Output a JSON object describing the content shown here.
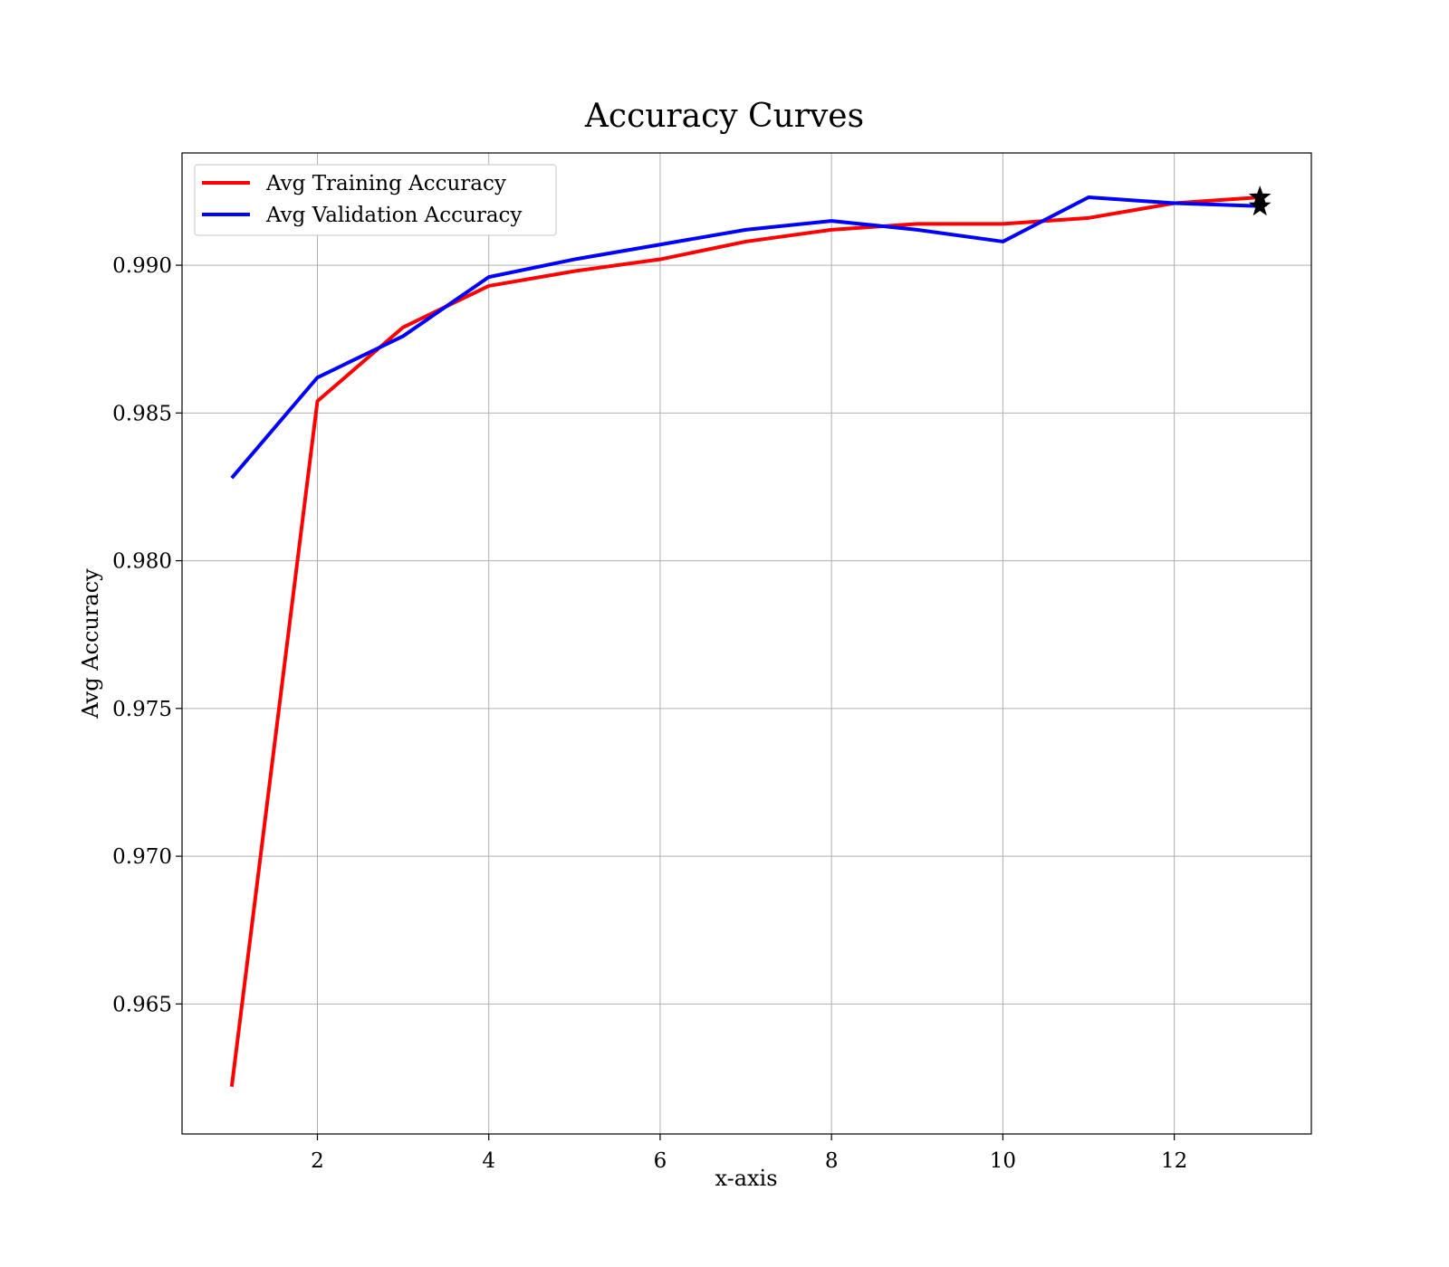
{
  "chart_data": {
    "type": "line",
    "title": "Accuracy Curves",
    "xlabel": "x-axis",
    "ylabel": "Avg Accuracy",
    "x": [
      1,
      2,
      3,
      4,
      5,
      6,
      7,
      8,
      9,
      10,
      11,
      12,
      13
    ],
    "xlim": [
      0.42,
      13.6
    ],
    "ylim": [
      0.9606,
      0.9938
    ],
    "xticks": [
      2,
      4,
      6,
      8,
      10,
      12
    ],
    "xtick_labels": [
      "2",
      "4",
      "6",
      "8",
      "10",
      "12"
    ],
    "yticks": [
      0.965,
      0.97,
      0.975,
      0.98,
      0.985,
      0.99
    ],
    "ytick_labels": [
      "0.965",
      "0.970",
      "0.975",
      "0.980",
      "0.985",
      "0.990"
    ],
    "grid": true,
    "legend_position": "top-left",
    "series": [
      {
        "name": "Avg Training Accuracy",
        "color": "#ff0000",
        "values": [
          0.9622,
          0.9854,
          0.9879,
          0.9893,
          0.9898,
          0.9902,
          0.9908,
          0.9912,
          0.9914,
          0.9914,
          0.9916,
          0.9921,
          0.9923
        ],
        "end_marker": "star"
      },
      {
        "name": "Avg Validation Accuracy",
        "color": "#0000ff",
        "values": [
          0.9828,
          0.9862,
          0.9876,
          0.9896,
          0.9902,
          0.9907,
          0.9912,
          0.9915,
          0.9912,
          0.9908,
          0.9923,
          0.9921,
          0.992
        ],
        "end_marker": "star"
      }
    ],
    "marker_color": "#000000"
  }
}
